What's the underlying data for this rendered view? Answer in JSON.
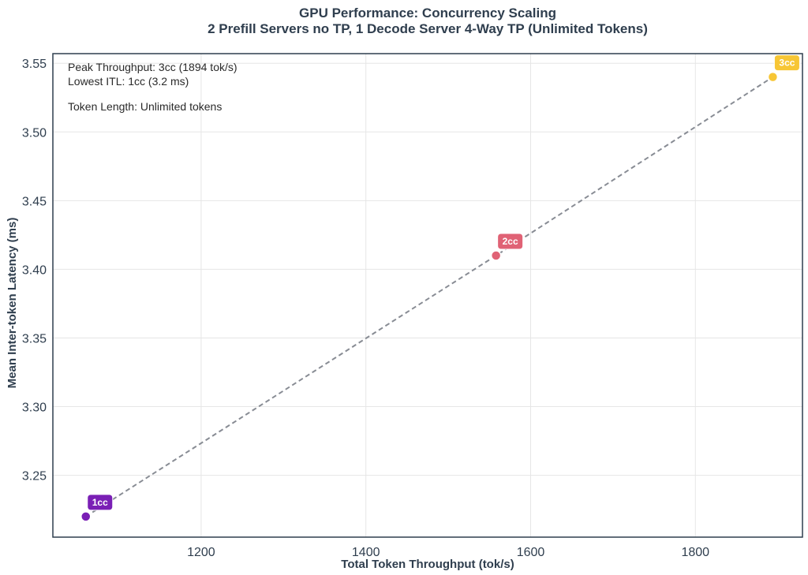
{
  "chart_data": {
    "type": "scatter",
    "title": "GPU Performance: Concurrency Scaling",
    "subtitle": "2 Prefill Servers no TP, 1 Decode Server 4-Way TP (Unlimited Tokens)",
    "xlabel": "Total Token Throughput (tok/s)",
    "ylabel": "Mean Inter-token Latency (ms)",
    "xlim": [
      1020,
      1930
    ],
    "ylim": [
      3.205,
      3.557
    ],
    "xticks": [
      1200,
      1400,
      1600,
      1800
    ],
    "yticks": [
      3.25,
      3.3,
      3.35,
      3.4,
      3.45,
      3.5,
      3.55
    ],
    "ytick_labels": [
      "3.25",
      "3.30",
      "3.35",
      "3.40",
      "3.45",
      "3.50",
      "3.55"
    ],
    "grid": true,
    "line_style": "dashed",
    "line_color": "#888c94",
    "points": [
      {
        "label": "1cc",
        "x": 1060,
        "y": 3.22,
        "color": "#7a1fb5"
      },
      {
        "label": "2cc",
        "x": 1558,
        "y": 3.41,
        "color": "#e06275"
      },
      {
        "label": "3cc",
        "x": 1894,
        "y": 3.54,
        "color": "#f7c635"
      }
    ],
    "annotations": [
      "Peak Throughput: 3cc (1894 tok/s)",
      "Lowest ITL: 1cc (3.2 ms)",
      "Token Length: Unlimited tokens"
    ]
  }
}
